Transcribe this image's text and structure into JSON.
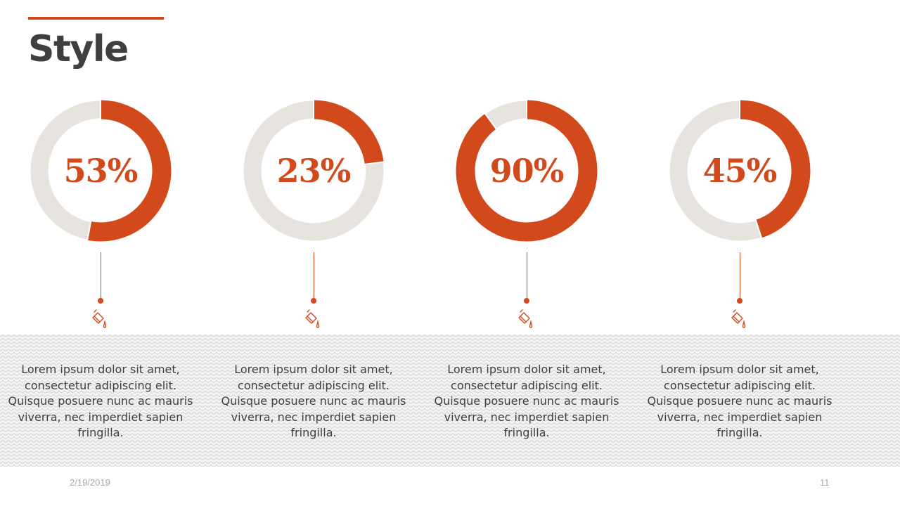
{
  "slide": {
    "title": "Style",
    "date": "2/19/2019",
    "page_number": "11"
  },
  "colors": {
    "accent": "#d24a1c",
    "track": "#e7e4df",
    "title_text": "#3f3f3f",
    "body_text": "#3f3f3f",
    "footer_text": "#a9a9a9"
  },
  "icons": {
    "item": "paint-bucket-icon"
  },
  "chart_data": [
    {
      "type": "pie",
      "values": [
        53,
        47
      ],
      "label": "53%",
      "description": "Lorem ipsum dolor sit amet, consectetur adipiscing elit. Quisque posuere nunc ac mauris viverra, nec imperdiet sapien fringilla."
    },
    {
      "type": "pie",
      "values": [
        23,
        77
      ],
      "label": "23%",
      "description": "Lorem ipsum dolor sit amet, consectetur adipiscing elit. Quisque posuere nunc ac mauris viverra, nec imperdiet sapien fringilla."
    },
    {
      "type": "pie",
      "values": [
        90,
        10
      ],
      "label": "90%",
      "description": "Lorem ipsum dolor sit amet, consectetur adipiscing elit. Quisque posuere nunc ac mauris viverra, nec imperdiet sapien fringilla."
    },
    {
      "type": "pie",
      "values": [
        45,
        55
      ],
      "label": "45%",
      "description": "Lorem ipsum dolor sit amet, consectetur adipiscing elit. Quisque posuere nunc ac mauris viverra, nec imperdiet sapien fringilla."
    }
  ]
}
